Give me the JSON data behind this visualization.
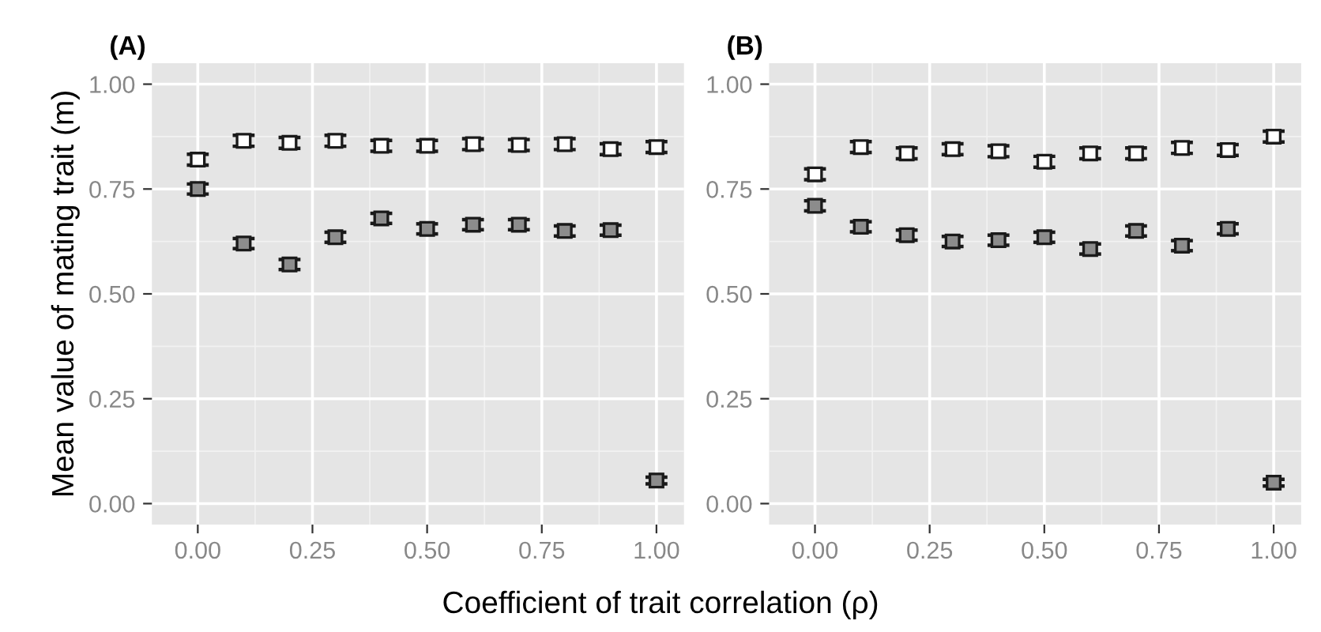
{
  "chart_data": [
    {
      "type": "scatter",
      "title": "(A)",
      "ylabel": "Mean value of mating trait (m)",
      "xlabel": "Coefficient of trait correlation (ρ)",
      "x": [
        0,
        0.1,
        0.2,
        0.3,
        0.4,
        0.5,
        0.6,
        0.7,
        0.8,
        0.9,
        1.0
      ],
      "series": [
        {
          "color": "#ffffff",
          "values": [
            0.82,
            0.865,
            0.86,
            0.865,
            0.853,
            0.853,
            0.857,
            0.855,
            0.857,
            0.845,
            0.85
          ],
          "errors": [
            0.013,
            0.013,
            0.013,
            0.013,
            0.013,
            0.013,
            0.013,
            0.013,
            0.013,
            0.013,
            0.013
          ]
        },
        {
          "color": "#8c8c8c",
          "values": [
            0.75,
            0.62,
            0.57,
            0.635,
            0.68,
            0.655,
            0.665,
            0.665,
            0.65,
            0.652,
            0.055
          ],
          "errors": [
            0.012,
            0.012,
            0.012,
            0.012,
            0.012,
            0.012,
            0.012,
            0.012,
            0.012,
            0.012,
            0.008
          ]
        }
      ],
      "xlim": [
        -0.1,
        1.06
      ],
      "ylim": [
        -0.05,
        1.05
      ],
      "xticks": [
        {
          "value": 0,
          "label": "0.00"
        },
        {
          "value": 0.25,
          "label": "0.25"
        },
        {
          "value": 0.5,
          "label": "0.50"
        },
        {
          "value": 0.75,
          "label": "0.75"
        },
        {
          "value": 1,
          "label": "1.00"
        }
      ],
      "yticks": [
        {
          "value": 0,
          "label": "0.00"
        },
        {
          "value": 0.25,
          "label": "0.25"
        },
        {
          "value": 0.5,
          "label": "0.50"
        },
        {
          "value": 0.75,
          "label": "0.75"
        },
        {
          "value": 1,
          "label": "1.00"
        }
      ],
      "grid": true,
      "marker": "square",
      "legend": false
    },
    {
      "type": "scatter",
      "title": "(B)",
      "x": [
        0,
        0.1,
        0.2,
        0.3,
        0.4,
        0.5,
        0.6,
        0.7,
        0.8,
        0.9,
        1.0
      ],
      "series": [
        {
          "color": "#ffffff",
          "values": [
            0.785,
            0.85,
            0.835,
            0.845,
            0.84,
            0.815,
            0.835,
            0.835,
            0.848,
            0.843,
            0.875
          ],
          "errors": [
            0.013,
            0.013,
            0.013,
            0.013,
            0.013,
            0.013,
            0.013,
            0.013,
            0.013,
            0.013,
            0.013
          ]
        },
        {
          "color": "#8c8c8c",
          "values": [
            0.71,
            0.66,
            0.64,
            0.625,
            0.628,
            0.635,
            0.607,
            0.65,
            0.615,
            0.655,
            0.05
          ],
          "errors": [
            0.012,
            0.012,
            0.012,
            0.012,
            0.012,
            0.012,
            0.012,
            0.012,
            0.012,
            0.012,
            0.008
          ]
        }
      ],
      "xlim": [
        -0.1,
        1.06
      ],
      "ylim": [
        -0.05,
        1.05
      ],
      "xticks": [
        {
          "value": 0,
          "label": "0.00"
        },
        {
          "value": 0.25,
          "label": "0.25"
        },
        {
          "value": 0.5,
          "label": "0.50"
        },
        {
          "value": 0.75,
          "label": "0.75"
        },
        {
          "value": 1,
          "label": "1.00"
        }
      ],
      "yticks": [
        {
          "value": 0,
          "label": "0.00"
        },
        {
          "value": 0.25,
          "label": "0.25"
        },
        {
          "value": 0.5,
          "label": "0.50"
        },
        {
          "value": 0.75,
          "label": "0.75"
        },
        {
          "value": 1,
          "label": "1.00"
        }
      ],
      "grid": true,
      "marker": "square",
      "legend": false
    }
  ]
}
